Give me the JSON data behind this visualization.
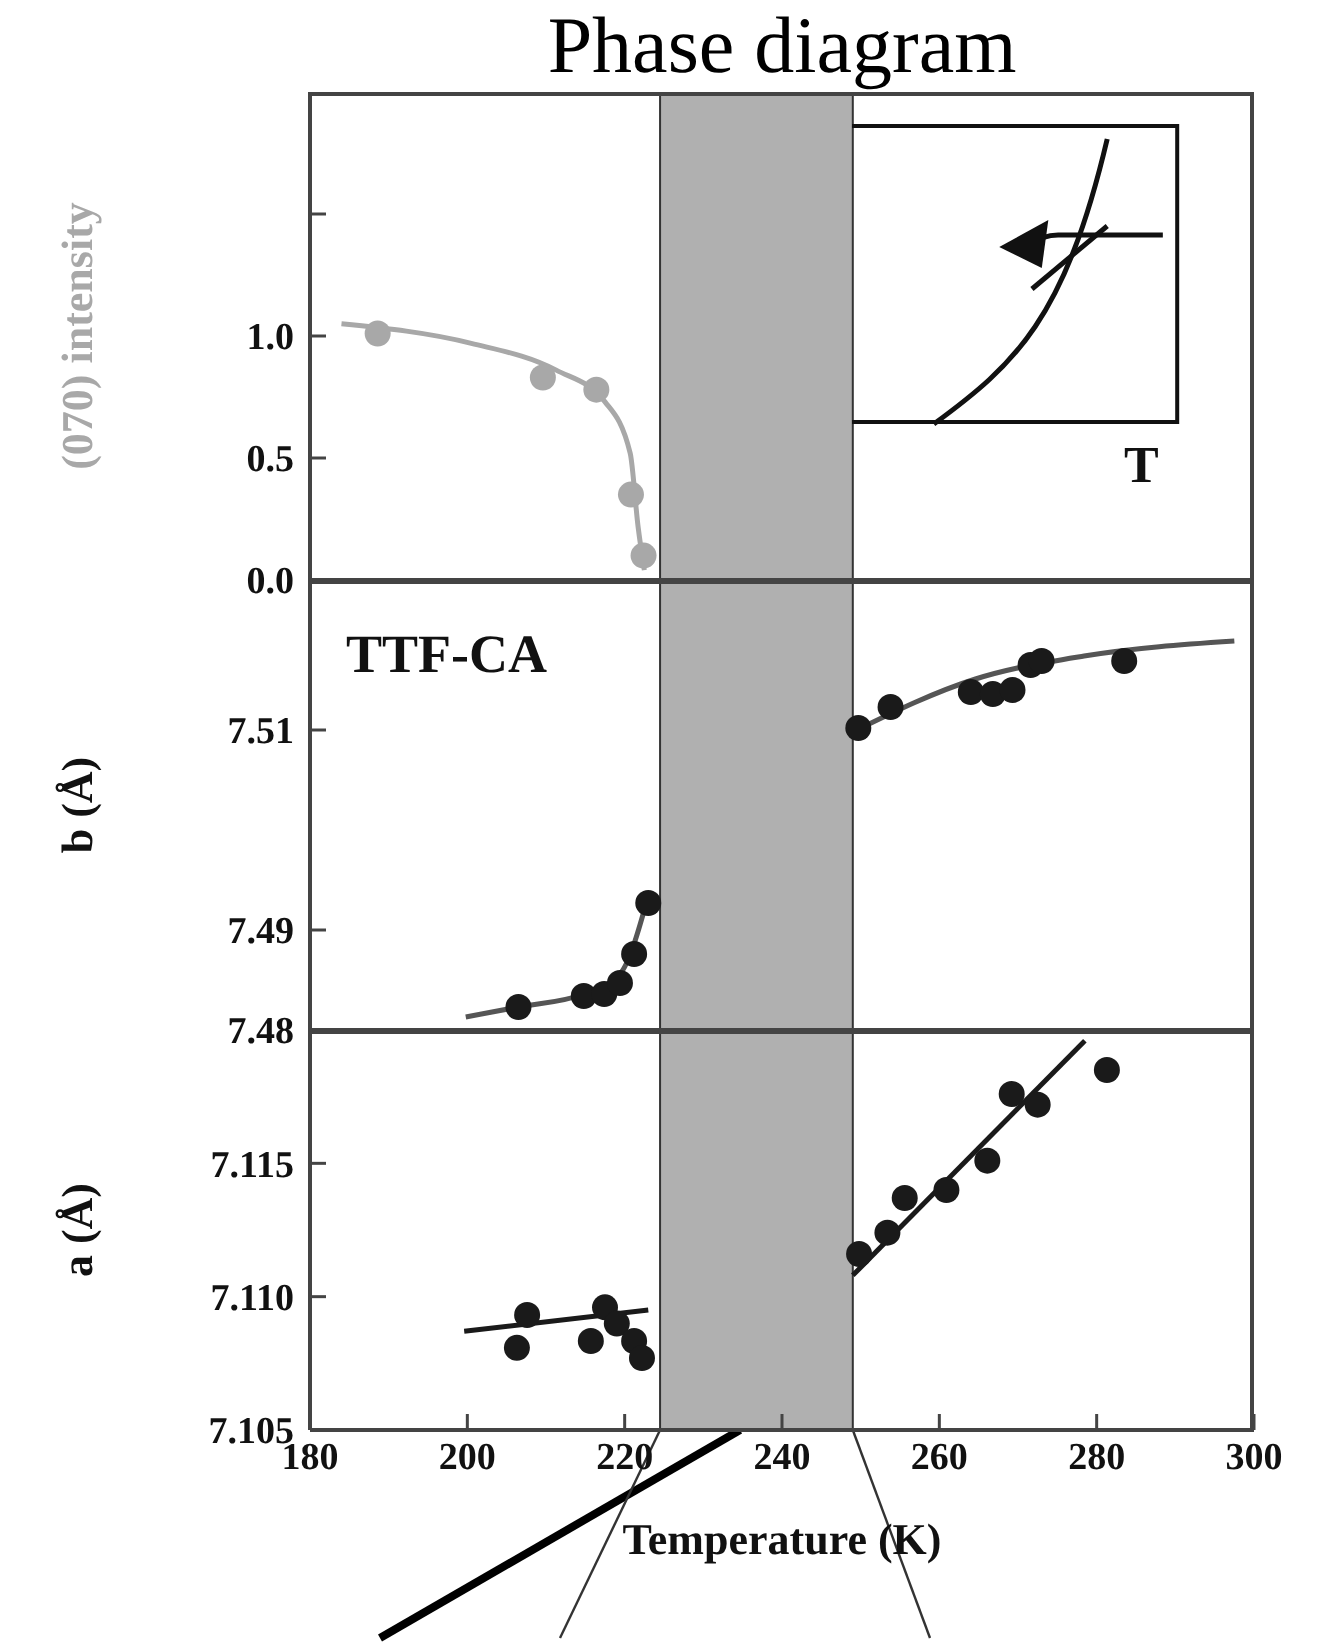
{
  "chart_data": [
    {
      "type": "scatter",
      "title": "Phase diagram",
      "ylabel": "(070) intensity",
      "annotations": [
        "T"
      ],
      "xlim": [
        180,
        300
      ],
      "xticks": [
        200,
        220,
        240,
        260,
        280
      ],
      "ylim": [
        0,
        2.0
      ],
      "yticks": [
        {
          "value": 0,
          "label": "0.0"
        },
        {
          "value": 0.5,
          "label": "0.5"
        },
        {
          "value": 1.0,
          "label": "1.0"
        },
        {
          "value": 1.5,
          "label": null
        }
      ],
      "tick_labels": "y",
      "bands": [
        {
          "axis": "x",
          "from": 224.5,
          "to": 249,
          "color": "#b0b0b0"
        }
      ],
      "series": [
        {
          "marker": "circle",
          "color": "#a8a8a8",
          "x": [
            188.6,
            209.6,
            216.4,
            220.8,
            222.4
          ],
          "values": [
            1.01,
            0.83,
            0.78,
            0.35,
            0.1
          ]
        },
        {
          "type": "line",
          "marker": "none",
          "color": "#a8a8a8",
          "x": [
            184,
            200.5,
            211.3,
            217.5,
            220.7,
            221.7,
            222.5
          ],
          "values": [
            1.05,
            0.97,
            0.86,
            0.73,
            0.52,
            0.22,
            0.04
          ]
        }
      ]
    },
    {
      "type": "scatter",
      "ylabel": "b (Å)",
      "annotations": [
        "TTF-CA"
      ],
      "xlim": [
        180,
        300
      ],
      "xticks": [
        200,
        220,
        240,
        260,
        280
      ],
      "ylim": [
        7.48,
        7.525
      ],
      "yticks": [
        7.48,
        7.49,
        7.51
      ],
      "tick_labels": "y",
      "bands": [
        {
          "axis": "x",
          "from": 224.5,
          "to": 249,
          "color": "#b0b0b0"
        }
      ],
      "series": [
        {
          "marker": "circle",
          "color": "#1a1a1a",
          "x": [
            206.5,
            214.8,
            217.4,
            219.4,
            221.2,
            223,
            249.7,
            253.8,
            264,
            266.8,
            269.3,
            271.6,
            273,
            283.5
          ],
          "values": [
            7.4823,
            7.4834,
            7.4836,
            7.4847,
            7.4876,
            7.4927,
            7.5102,
            7.5123,
            7.5138,
            7.5136,
            7.514,
            7.5165,
            7.5169,
            7.5169
          ]
        },
        {
          "type": "line",
          "marker": "none",
          "color": "#555555",
          "x": [
            199.8,
            206.5,
            214.8,
            219.4,
            223
          ],
          "values": [
            7.4813,
            7.4823,
            7.4836,
            7.4856,
            7.4934
          ]
        },
        {
          "type": "line",
          "marker": "none",
          "color": "#555555",
          "x": [
            249,
            264.6,
            278.4,
            297.5
          ],
          "values": [
            7.5098,
            7.5151,
            7.5174,
            7.5189
          ]
        }
      ]
    },
    {
      "type": "scatter",
      "ylabel": "a (Å)",
      "xlabel": "Temperature (K)",
      "xlim": [
        180,
        300
      ],
      "xticks": [
        180,
        200,
        220,
        240,
        260,
        280,
        300
      ],
      "ylim": [
        7.105,
        7.12
      ],
      "yticks": [
        7.105,
        {
          "value": 7.11,
          "label": "7.110"
        },
        7.115
      ],
      "bands": [
        {
          "axis": "x",
          "from": 224.5,
          "to": 249,
          "color": "#b0b0b0"
        }
      ],
      "series": [
        {
          "marker": "circle",
          "color": "#1a1a1a",
          "x": [
            206.3,
            207.6,
            215.7,
            217.5,
            219,
            221.2,
            222.2,
            249.8,
            253.4,
            255.6,
            260.9,
            266.1,
            269.2,
            272.5,
            281.3
          ],
          "values": [
            7.10808,
            7.10931,
            7.10834,
            7.1096,
            7.10899,
            7.10834,
            7.1077,
            7.1116,
            7.1124,
            7.1137,
            7.114,
            7.1151,
            7.1176,
            7.1172,
            7.1185
          ]
        },
        {
          "type": "line",
          "marker": "none",
          "color": "#1a1a1a",
          "x": [
            199.6,
            223
          ],
          "values": [
            7.1087,
            7.1095
          ]
        },
        {
          "type": "line",
          "marker": "none",
          "color": "#1a1a1a",
          "x": [
            249,
            278.5
          ],
          "values": [
            7.1108,
            7.1196
          ]
        }
      ]
    }
  ]
}
